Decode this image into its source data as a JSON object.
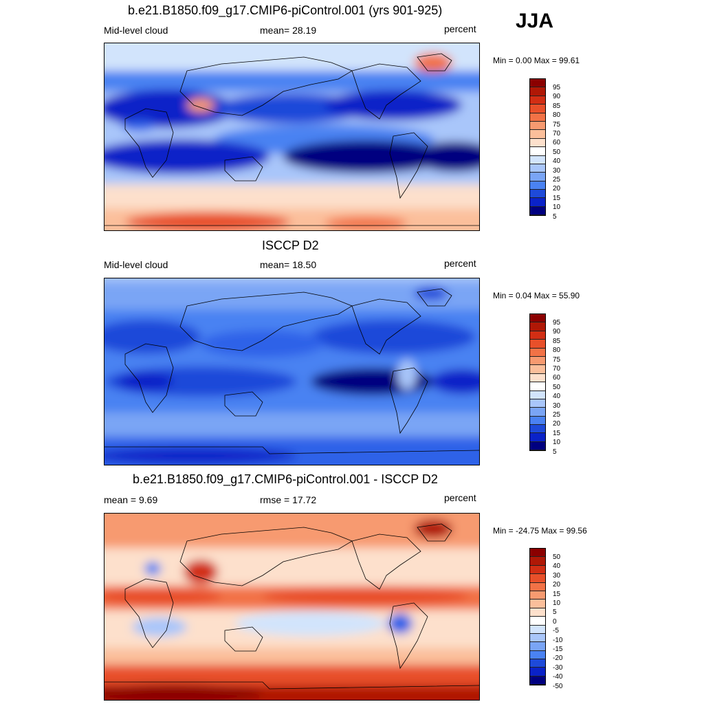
{
  "season": "JJA",
  "colors": {
    "abs": [
      "#000080",
      "#0a22c8",
      "#1e4ad9",
      "#2f62e8",
      "#4a82f2",
      "#7aa5f5",
      "#a9c6fa",
      "#d2e4fc",
      "#ffffff",
      "#fde0cc",
      "#fbbf9b",
      "#f79a70",
      "#f27246",
      "#e8502a",
      "#d22e14",
      "#b01806",
      "#8b0000"
    ],
    "diff": [
      "#000080",
      "#0a22c8",
      "#1e4ad9",
      "#2f62e8",
      "#4a82f2",
      "#7aa5f5",
      "#a9c6fa",
      "#d2e4fc",
      "#ffffff",
      "#fde0cc",
      "#fbbf9b",
      "#f79a70",
      "#f27246",
      "#e8502a",
      "#d22e14",
      "#b01806",
      "#8b0000"
    ]
  },
  "panels": [
    {
      "title": "b.e21.B1850.f09_g17.CMIP6-piControl.001 (yrs 901-925)",
      "left_label": "Mid-level cloud",
      "center_label": "mean=  28.19",
      "units": "percent",
      "minmax": "Min =   0.00 Max =  99.61",
      "colorbar_ticks": [
        "95",
        "90",
        "85",
        "80",
        "75",
        "70",
        "60",
        "50",
        "40",
        "30",
        "25",
        "20",
        "15",
        "10",
        "5"
      ]
    },
    {
      "title": "ISCCP D2",
      "left_label": "Mid-level cloud",
      "center_label": "mean=  18.50",
      "units": "percent",
      "minmax": "Min =   0.04 Max =  55.90",
      "colorbar_ticks": [
        "95",
        "90",
        "85",
        "80",
        "75",
        "70",
        "60",
        "50",
        "40",
        "30",
        "25",
        "20",
        "15",
        "10",
        "5"
      ]
    },
    {
      "title": "b.e21.B1850.f09_g17.CMIP6-piControl.001 - ISCCP D2",
      "left_label": "mean =   9.69",
      "center_label": "rmse =  17.72",
      "units": "percent",
      "minmax": "Min = -24.75 Max =  99.56",
      "colorbar_ticks": [
        "50",
        "40",
        "30",
        "20",
        "15",
        "10",
        "5",
        "0",
        "-5",
        "-10",
        "-15",
        "-20",
        "-30",
        "-40",
        "-50"
      ]
    }
  ]
}
